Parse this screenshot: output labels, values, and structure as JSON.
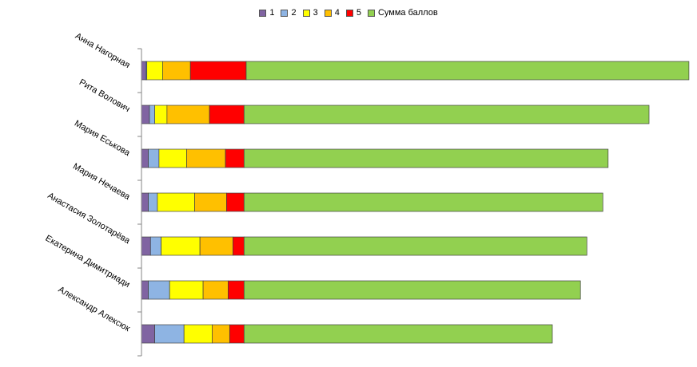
{
  "chart_data": {
    "type": "bar",
    "orientation": "horizontal",
    "stacked": true,
    "legend_position": "top",
    "grid": false,
    "xlim": [
      0,
      1000
    ],
    "categories": [
      "Анна Нагорная",
      "Рита Волович",
      "Мария Еськова",
      "Мария Нечаева",
      "Анастасия Золотарёва",
      "Екатерина Димитриади",
      "Александр Алексюк"
    ],
    "series": [
      {
        "name": "1",
        "color": "#8064A2",
        "values": [
          8,
          15,
          13,
          13,
          17,
          13,
          25
        ]
      },
      {
        "name": "2",
        "color": "#8EB4E3",
        "values": [
          2,
          10,
          20,
          17,
          20,
          40,
          55
        ]
      },
      {
        "name": "3",
        "color": "#FFFF00",
        "values": [
          30,
          23,
          52,
          70,
          73,
          63,
          53
        ]
      },
      {
        "name": "4",
        "color": "#FFC000",
        "values": [
          52,
          80,
          73,
          60,
          62,
          47,
          33
        ]
      },
      {
        "name": "5",
        "color": "#FF0000",
        "values": [
          105,
          65,
          35,
          33,
          21,
          30,
          27
        ]
      },
      {
        "name": "Сумма баллов",
        "color": "#92D050",
        "values": [
          833,
          762,
          685,
          675,
          645,
          633,
          580
        ]
      }
    ]
  }
}
